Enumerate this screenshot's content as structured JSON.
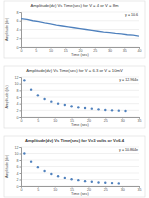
{
  "chart_data": [
    {
      "type": "line",
      "title": "Amplitude(dv) Vs Time(sec) for V = 4 or V = 8m",
      "xlabel": "Time (sec)",
      "ylabel": "Amplitude (dv)",
      "annotation": "y = 10.6",
      "x": [
        0,
        2,
        4,
        6,
        8,
        10,
        12,
        14,
        16,
        18,
        20,
        22,
        24,
        26,
        28,
        30,
        32,
        34,
        36,
        38,
        40
      ],
      "values": [
        6.5,
        6.3,
        6.0,
        5.8,
        5.5,
        5.3,
        5.0,
        4.8,
        4.6,
        4.4,
        4.2,
        4.0,
        3.8,
        3.6,
        3.4,
        3.3,
        3.1,
        3.0,
        2.8,
        2.7,
        2.5
      ],
      "color": "#4f81bd",
      "xlim": [
        0,
        40
      ],
      "ylim": [
        0,
        8
      ],
      "xticks": [
        0,
        5,
        10,
        15,
        20,
        25,
        30,
        35,
        40
      ],
      "yticks": [
        0,
        2,
        4,
        6,
        8
      ],
      "grid": true
    },
    {
      "type": "scatter",
      "title": "Amplitude(dv) Vs Time(sec) for V = 6.3 or V = 10mV",
      "xlabel": "Time (sec)",
      "ylabel": "Amplitude (dv)",
      "annotation": "y = 12.964x",
      "x": [
        1,
        3,
        5,
        7,
        9,
        11,
        13,
        15,
        17,
        19,
        21,
        23,
        25,
        27,
        29,
        31
      ],
      "values": [
        11,
        8.2,
        6.5,
        5.4,
        4.6,
        4.0,
        3.6,
        3.2,
        2.9,
        2.7,
        2.5,
        2.3,
        2.1,
        2.0,
        1.9,
        1.8
      ],
      "color": "#4f81bd",
      "marker": "circle",
      "xlim": [
        0,
        35
      ],
      "ylim": [
        0,
        12
      ],
      "xticks": [
        0,
        5,
        10,
        15,
        20,
        25,
        30,
        35
      ],
      "yticks": [
        0,
        2,
        4,
        6,
        8,
        10,
        12
      ],
      "grid": true
    },
    {
      "type": "scatter",
      "title": "Amplitude(dv) Vs Time(sec) for V=3 volts or V=6.4",
      "xlabel": "Time (sec)",
      "ylabel": "Amplitude (dv)",
      "annotation": "y = 10.864e",
      "x": [
        1,
        3,
        5,
        7,
        9,
        11,
        13,
        15,
        17,
        19,
        21,
        23,
        25,
        27,
        29
      ],
      "values": [
        10,
        7.5,
        5.8,
        4.6,
        3.7,
        3.0,
        2.5,
        2.1,
        1.8,
        1.5,
        1.3,
        1.1,
        1.0,
        0.9,
        0.8
      ],
      "color": "#4f81bd",
      "marker": "circle",
      "xlim": [
        0,
        35
      ],
      "ylim": [
        0,
        12
      ],
      "xticks": [
        0,
        5,
        10,
        15,
        20,
        25,
        30,
        35
      ],
      "yticks": [
        0,
        2,
        4,
        6,
        8,
        10,
        12
      ],
      "grid": true
    }
  ]
}
